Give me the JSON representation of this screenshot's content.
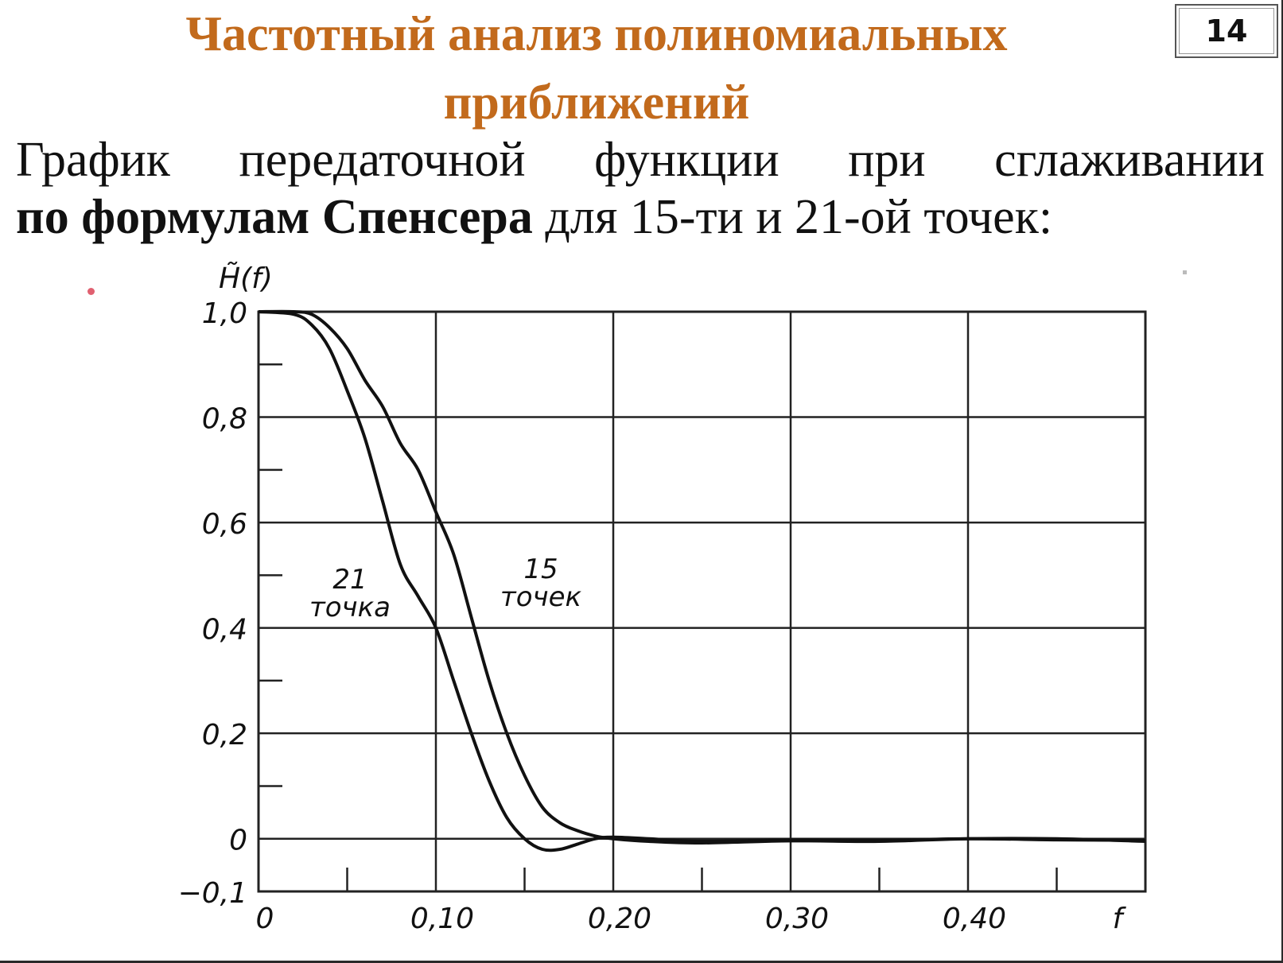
{
  "slide": {
    "title_line1": "Частотный анализ полиномиальных",
    "title_line2": "приближений",
    "page_number": "14",
    "subtitle_words": [
      "График",
      "передаточной",
      "функции",
      "при",
      "сглаживании"
    ],
    "subtitle_bold": "по формулам Спенсера",
    "subtitle_rest": " для 15-ти и 21-ой точек:"
  },
  "colors": {
    "title": "#c26a1c",
    "text": "#111111",
    "curve": "#111111",
    "grid": "#222222"
  },
  "chart_data": {
    "type": "line",
    "title": "",
    "ylabel": "H̃(f)",
    "xlabel": "f",
    "xlim": [
      0,
      0.5
    ],
    "ylim": [
      -0.1,
      1.0
    ],
    "grid": true,
    "x_ticks": [
      0,
      0.1,
      0.2,
      0.3,
      0.4
    ],
    "x_tick_labels": [
      "0",
      "0,10",
      "0,20",
      "0,30",
      "0,40"
    ],
    "y_ticks": [
      1.0,
      0.8,
      0.6,
      0.4,
      0.2,
      0,
      -0.1
    ],
    "y_tick_labels": [
      "1,0",
      "0,8",
      "0,6",
      "0,4",
      "0,2",
      "0",
      "−0,1"
    ],
    "series": [
      {
        "name": "21 точка",
        "label_lines": [
          "21",
          "точка"
        ],
        "x": [
          0,
          0.02,
          0.03,
          0.04,
          0.05,
          0.06,
          0.07,
          0.08,
          0.09,
          0.1,
          0.11,
          0.12,
          0.13,
          0.14,
          0.15,
          0.16,
          0.17,
          0.18,
          0.19,
          0.2,
          0.22,
          0.25,
          0.3,
          0.35,
          0.4,
          0.45,
          0.5
        ],
        "values": [
          1.0,
          0.995,
          0.975,
          0.93,
          0.85,
          0.76,
          0.64,
          0.52,
          0.46,
          0.4,
          0.3,
          0.2,
          0.11,
          0.04,
          0.0,
          -0.02,
          -0.02,
          -0.01,
          0.0,
          0.003,
          0.0,
          -0.005,
          -0.002,
          -0.003,
          0.0,
          -0.002,
          -0.003
        ]
      },
      {
        "name": "15 точек",
        "label_lines": [
          "15",
          "точек"
        ],
        "x": [
          0,
          0.02,
          0.03,
          0.04,
          0.05,
          0.06,
          0.07,
          0.08,
          0.09,
          0.1,
          0.11,
          0.12,
          0.13,
          0.14,
          0.15,
          0.16,
          0.17,
          0.18,
          0.19,
          0.2,
          0.22,
          0.25,
          0.3,
          0.35,
          0.4,
          0.45,
          0.5
        ],
        "values": [
          1.0,
          1.0,
          0.995,
          0.97,
          0.93,
          0.87,
          0.82,
          0.75,
          0.7,
          0.62,
          0.54,
          0.42,
          0.3,
          0.2,
          0.12,
          0.06,
          0.03,
          0.015,
          0.005,
          0.0,
          -0.005,
          -0.008,
          -0.004,
          -0.005,
          0.0,
          0.0,
          -0.005
        ]
      }
    ]
  }
}
